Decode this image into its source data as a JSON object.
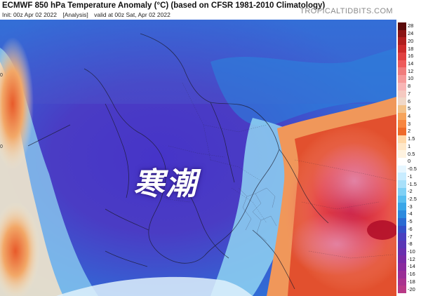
{
  "header": {
    "title": "ECMWF 850 hPa Temperature Anomaly (°C) (based on CFSR 1981-2010 Climatology)",
    "init": "Init: 00z Apr 02 2022",
    "analysis": "[Analysis]",
    "valid": "valid at 00z Sat, Apr 02 2022",
    "brand": "TROPICALTIDBITS.COM"
  },
  "map": {
    "overlay_label": "寒潮",
    "edge_marks": [
      "0",
      "0"
    ]
  },
  "colorbar": {
    "labels": [
      "28",
      "24",
      "20",
      "18",
      "16",
      "14",
      "12",
      "10",
      "8",
      "7",
      "6",
      "5",
      "4",
      "3",
      "2",
      "1.5",
      "1",
      "0.5",
      "0",
      "-0.5",
      "-1",
      "-1.5",
      "-2",
      "-2.5",
      "-3",
      "-4",
      "-5",
      "-6",
      "-7",
      "-8",
      "-10",
      "-12",
      "-14",
      "-16",
      "-18",
      "-20"
    ],
    "colors": [
      "#5a0a0a",
      "#8c1414",
      "#b01e1e",
      "#cc2a2a",
      "#e04040",
      "#ee5a5a",
      "#f07c7c",
      "#f59a9a",
      "#f8b5b5",
      "#f5c9c0",
      "#f0d8c8",
      "#f3c28a",
      "#f6a35a",
      "#f78640",
      "#ee6a2a",
      "#ffd8a8",
      "#ffe8c8",
      "#fff3e0",
      "#ffffff",
      "#e6f6ff",
      "#c8ecff",
      "#a8e0fa",
      "#7fd0f5",
      "#59bef0",
      "#3aa6e8",
      "#2b89de",
      "#2a6ad2",
      "#3450c8",
      "#4a3fc0",
      "#5a36b5",
      "#6a2fae",
      "#7a2aa5",
      "#8a2a9e",
      "#9a2e96",
      "#aa338e",
      "#b83986"
    ]
  }
}
